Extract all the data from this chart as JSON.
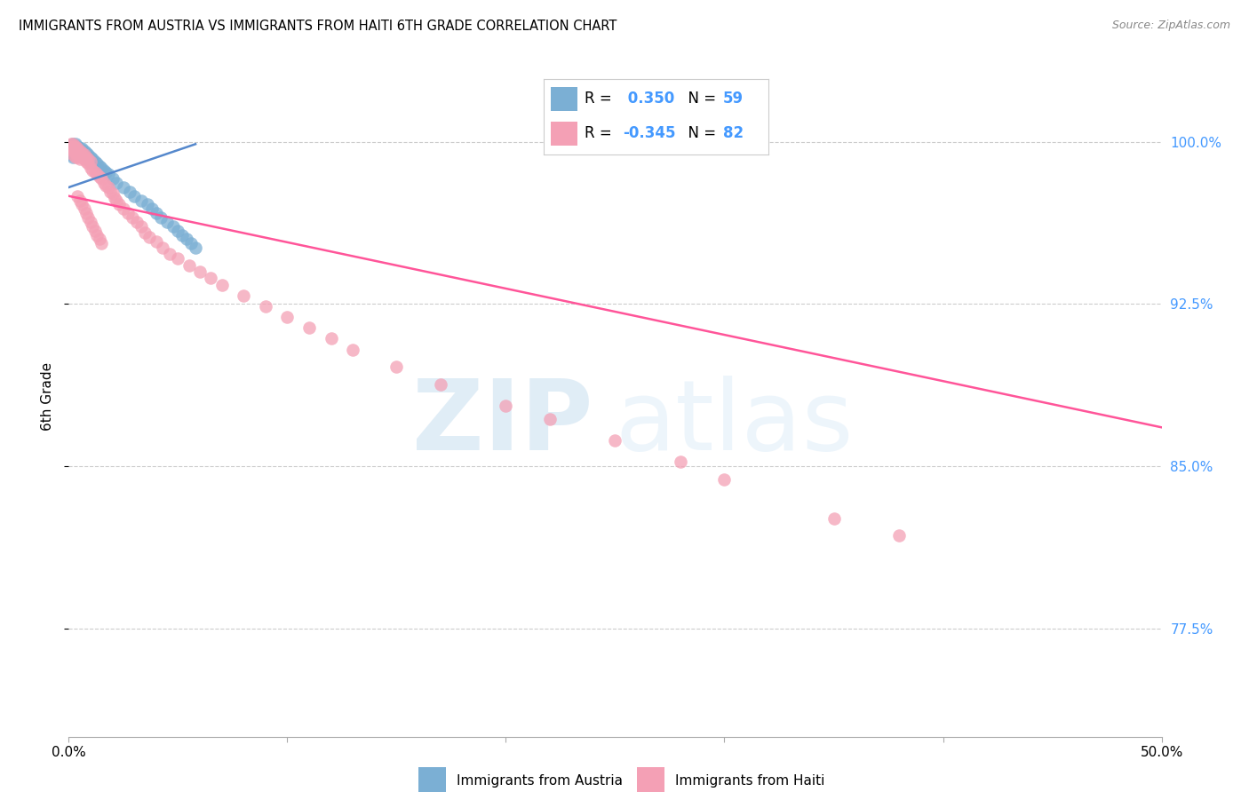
{
  "title": "IMMIGRANTS FROM AUSTRIA VS IMMIGRANTS FROM HAITI 6TH GRADE CORRELATION CHART",
  "source": "Source: ZipAtlas.com",
  "ylabel": "6th Grade",
  "ytick_labels": [
    "77.5%",
    "85.0%",
    "92.5%",
    "100.0%"
  ],
  "ytick_values": [
    0.775,
    0.85,
    0.925,
    1.0
  ],
  "x_min": 0.0,
  "x_max": 0.5,
  "y_min": 0.725,
  "y_max": 1.04,
  "color_austria": "#7BAFD4",
  "color_haiti": "#F4A0B5",
  "color_trendline_austria": "#5588CC",
  "color_trendline_haiti": "#FF5599",
  "color_right_labels": "#4499FF",
  "color_grid": "#cccccc",
  "legend_box_color": "#dddddd",
  "austria_scatter_x": [
    0.001,
    0.001,
    0.001,
    0.001,
    0.001,
    0.002,
    0.002,
    0.002,
    0.002,
    0.002,
    0.002,
    0.003,
    0.003,
    0.003,
    0.003,
    0.003,
    0.004,
    0.004,
    0.004,
    0.004,
    0.005,
    0.005,
    0.005,
    0.006,
    0.006,
    0.006,
    0.007,
    0.007,
    0.008,
    0.008,
    0.009,
    0.009,
    0.01,
    0.01,
    0.011,
    0.012,
    0.013,
    0.014,
    0.015,
    0.016,
    0.017,
    0.018,
    0.02,
    0.022,
    0.025,
    0.028,
    0.03,
    0.033,
    0.036,
    0.038,
    0.04,
    0.042,
    0.045,
    0.048,
    0.05,
    0.052,
    0.054,
    0.056,
    0.058
  ],
  "austria_scatter_y": [
    0.998,
    0.997,
    0.996,
    0.995,
    0.994,
    0.999,
    0.998,
    0.997,
    0.996,
    0.995,
    0.993,
    0.999,
    0.998,
    0.997,
    0.996,
    0.994,
    0.998,
    0.997,
    0.996,
    0.995,
    0.997,
    0.996,
    0.995,
    0.997,
    0.996,
    0.994,
    0.996,
    0.994,
    0.995,
    0.993,
    0.994,
    0.992,
    0.993,
    0.991,
    0.992,
    0.991,
    0.99,
    0.989,
    0.988,
    0.987,
    0.986,
    0.985,
    0.983,
    0.981,
    0.979,
    0.977,
    0.975,
    0.973,
    0.971,
    0.969,
    0.967,
    0.965,
    0.963,
    0.961,
    0.959,
    0.957,
    0.955,
    0.953,
    0.951
  ],
  "haiti_scatter_x": [
    0.001,
    0.001,
    0.001,
    0.002,
    0.002,
    0.002,
    0.002,
    0.003,
    0.003,
    0.003,
    0.003,
    0.004,
    0.004,
    0.004,
    0.005,
    0.005,
    0.005,
    0.006,
    0.006,
    0.007,
    0.007,
    0.008,
    0.008,
    0.009,
    0.009,
    0.01,
    0.01,
    0.011,
    0.012,
    0.013,
    0.014,
    0.015,
    0.016,
    0.017,
    0.018,
    0.019,
    0.02,
    0.021,
    0.022,
    0.023,
    0.025,
    0.027,
    0.029,
    0.031,
    0.033,
    0.035,
    0.037,
    0.04,
    0.043,
    0.046,
    0.05,
    0.055,
    0.06,
    0.065,
    0.07,
    0.08,
    0.09,
    0.1,
    0.11,
    0.12,
    0.13,
    0.15,
    0.17,
    0.2,
    0.22,
    0.25,
    0.28,
    0.3,
    0.35,
    0.38,
    0.004,
    0.005,
    0.006,
    0.007,
    0.008,
    0.009,
    0.01,
    0.011,
    0.012,
    0.013,
    0.014,
    0.015
  ],
  "haiti_scatter_y": [
    0.999,
    0.998,
    0.997,
    0.999,
    0.998,
    0.996,
    0.994,
    0.998,
    0.997,
    0.995,
    0.993,
    0.997,
    0.995,
    0.993,
    0.996,
    0.994,
    0.992,
    0.995,
    0.993,
    0.994,
    0.992,
    0.993,
    0.991,
    0.992,
    0.99,
    0.991,
    0.988,
    0.987,
    0.986,
    0.985,
    0.984,
    0.983,
    0.981,
    0.98,
    0.979,
    0.977,
    0.976,
    0.974,
    0.973,
    0.971,
    0.969,
    0.967,
    0.965,
    0.963,
    0.961,
    0.958,
    0.956,
    0.954,
    0.951,
    0.948,
    0.946,
    0.943,
    0.94,
    0.937,
    0.934,
    0.929,
    0.924,
    0.919,
    0.914,
    0.909,
    0.904,
    0.896,
    0.888,
    0.878,
    0.872,
    0.862,
    0.852,
    0.844,
    0.826,
    0.818,
    0.975,
    0.973,
    0.971,
    0.969,
    0.967,
    0.965,
    0.963,
    0.961,
    0.959,
    0.957,
    0.955,
    0.953
  ],
  "austria_trendline_x": [
    0.0,
    0.058
  ],
  "austria_trendline_y": [
    0.979,
    0.999
  ],
  "haiti_trendline_x": [
    0.0,
    0.5
  ],
  "haiti_trendline_y": [
    0.975,
    0.868
  ],
  "legend_r1_prefix": "R = ",
  "legend_r1_value": " 0.350",
  "legend_n1_prefix": "N = ",
  "legend_n1_value": "59",
  "legend_r2_prefix": "R = ",
  "legend_r2_value": "-0.345",
  "legend_n2_prefix": "N = ",
  "legend_n2_value": "82",
  "bottom_label1": "Immigrants from Austria",
  "bottom_label2": "Immigrants from Haiti"
}
